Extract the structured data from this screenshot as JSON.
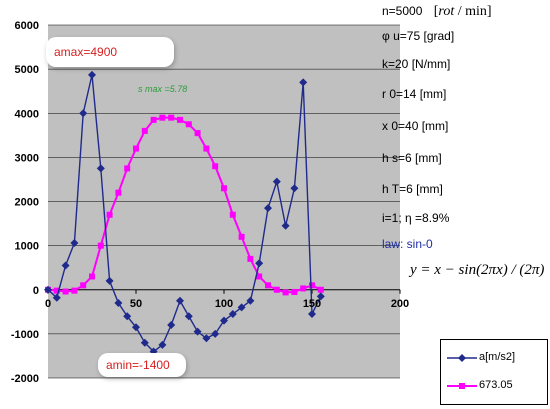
{
  "chart_data": {
    "type": "line",
    "xlim": [
      0,
      200
    ],
    "ylim": [
      -2000,
      6000
    ],
    "x_ticks": [
      0,
      50,
      100,
      150,
      200
    ],
    "y_ticks": [
      -2000,
      -1000,
      0,
      1000,
      2000,
      3000,
      4000,
      5000,
      6000
    ],
    "grid": true,
    "legend_position": "bottom-right",
    "series": [
      {
        "name": "a[m/s2]",
        "color": "#1f2a8c",
        "marker": "diamond",
        "x": [
          0,
          5,
          10,
          15,
          20,
          25,
          30,
          35,
          40,
          45,
          50,
          55,
          60,
          65,
          70,
          75,
          80,
          85,
          90,
          95,
          100,
          105,
          110,
          115,
          120,
          125,
          130,
          135,
          140,
          145,
          150,
          155
        ],
        "y": [
          0,
          -180,
          550,
          1060,
          4000,
          4870,
          2750,
          200,
          -300,
          -600,
          -850,
          -1200,
          -1400,
          -1250,
          -800,
          -250,
          -600,
          -950,
          -1100,
          -1000,
          -700,
          -550,
          -400,
          -250,
          600,
          1850,
          2450,
          1450,
          2300,
          4700,
          -550,
          -150
        ]
      },
      {
        "name": "673.05",
        "color": "#ff00ff",
        "marker": "square",
        "x": [
          0,
          5,
          10,
          15,
          20,
          25,
          30,
          35,
          40,
          45,
          50,
          55,
          60,
          65,
          70,
          75,
          80,
          85,
          90,
          95,
          100,
          105,
          110,
          115,
          120,
          125,
          130,
          135,
          140,
          145,
          150,
          155
        ],
        "y": [
          0,
          -20,
          -40,
          -20,
          100,
          300,
          1000,
          1700,
          2200,
          2750,
          3200,
          3600,
          3850,
          3900,
          3900,
          3850,
          3750,
          3550,
          3200,
          2800,
          2300,
          1700,
          1200,
          700,
          300,
          100,
          0,
          -60,
          -50,
          30,
          100,
          0
        ]
      }
    ],
    "annotations": {
      "s_max": "s  max  =5.78",
      "a_max": "amax=4900",
      "a_min": "amin=-1400"
    }
  },
  "params": {
    "n": "n=5000",
    "n_unit_pre": "[",
    "n_unit_rot": "rot",
    "n_unit_post": " / min]",
    "phi": "φ u=75 [grad]",
    "k": "k=20 [N/mm]",
    "r0": "r 0=14 [mm]",
    "x0": "x 0=40 [mm]",
    "hs": "h s=6 [mm]",
    "hT": "h T=6 [mm]",
    "i_eta": "i=1;   η =8.9%",
    "law": "law:  sin-0",
    "formula": "y = x − sin(2πx) / (2π)"
  }
}
